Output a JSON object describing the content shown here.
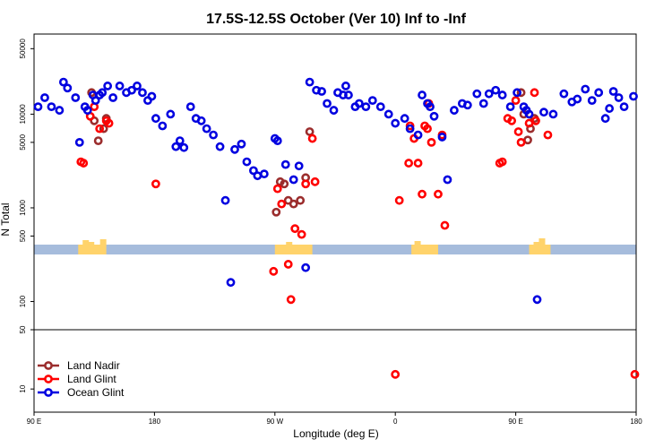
{
  "chart_data": {
    "type": "scatter",
    "title": "17.5S-12.5S October (Ver 10)   Inf to -Inf",
    "xlabel": "Longitude (deg E)",
    "ylabel": "N Total",
    "x_tick_labels": [
      "90 E",
      "180",
      "90 W",
      "0",
      "90 E",
      "180"
    ],
    "x_ticks": [
      90,
      180,
      270,
      360,
      450,
      540
    ],
    "xlim": [
      90,
      540
    ],
    "y_scale": "log",
    "y_tick_labels": [
      "10",
      "50",
      "100",
      "500",
      "1000",
      "5000",
      "10000",
      "50000"
    ],
    "y_ticks": [
      10,
      50,
      100,
      500,
      1000,
      5000,
      10000,
      50000
    ],
    "ylim_upper": [
      50,
      55000
    ],
    "ylim_lower": [
      8,
      50
    ],
    "legend_position": "bottom-left",
    "colors": {
      "land_nadir": "#9b2d2d",
      "land_glint": "#ff0000",
      "ocean_glint": "#0000e0",
      "land_band": "#ffd36b",
      "ocean_band": "#a6bcdc"
    },
    "series": [
      {
        "name": "Land Nadir",
        "x": [
          133,
          135,
          138,
          142,
          144,
          271,
          274,
          277,
          280,
          284,
          289,
          293,
          296,
          454,
          456,
          459,
          461,
          464
        ],
        "y": [
          17000,
          8500,
          5200,
          7000,
          9000,
          900,
          1900,
          1800,
          1200,
          1100,
          1200,
          2100,
          6500,
          17000,
          10000,
          5300,
          7000,
          9000
        ]
      },
      {
        "name": "Land Glint",
        "x": [
          125,
          127,
          132,
          135,
          139,
          144,
          146,
          181,
          269,
          272,
          275,
          280,
          282,
          285,
          290,
          293,
          298,
          300,
          360,
          363,
          370,
          371,
          374,
          377,
          380,
          382,
          384,
          385,
          387,
          392,
          395,
          397,
          438,
          440,
          444,
          447,
          450,
          452,
          454,
          460,
          464,
          465,
          474,
          539
        ],
        "y": [
          3100,
          3000,
          9500,
          12000,
          7000,
          8500,
          8000,
          1800,
          210,
          1600,
          1100,
          250,
          105,
          600,
          520,
          1800,
          5500,
          1900,
          14,
          1200,
          3000,
          7500,
          5500,
          3000,
          1400,
          7500,
          7000,
          13000,
          5000,
          1400,
          6000,
          650,
          3000,
          3100,
          9000,
          8500,
          14000,
          6500,
          5000,
          8000,
          17000,
          8500,
          6000,
          14
        ]
      },
      {
        "name": "Ocean Glint",
        "x": [
          93,
          98,
          103,
          109,
          112,
          115,
          121,
          124,
          128,
          130,
          134,
          136,
          139,
          141,
          145,
          149,
          154,
          159,
          163,
          167,
          171,
          175,
          178,
          181,
          186,
          192,
          196,
          199,
          202,
          207,
          211,
          215,
          219,
          224,
          229,
          233,
          237,
          240,
          245,
          249,
          254,
          257,
          262,
          270,
          272,
          278,
          284,
          288,
          293,
          296,
          301,
          305,
          309,
          314,
          317,
          321,
          323,
          325,
          330,
          333,
          338,
          343,
          349,
          355,
          360,
          367,
          371,
          377,
          380,
          384,
          386,
          389,
          395,
          399,
          404,
          410,
          414,
          421,
          426,
          430,
          435,
          440,
          446,
          451,
          456,
          458,
          460,
          466,
          471,
          478,
          486,
          492,
          496,
          502,
          507,
          512,
          517,
          520,
          523,
          527,
          531,
          538
        ],
        "y": [
          12000,
          15000,
          12000,
          11000,
          22000,
          19000,
          15000,
          5000,
          12000,
          11000,
          16000,
          14000,
          16000,
          17000,
          20000,
          15000,
          20000,
          17000,
          18000,
          20000,
          17000,
          14000,
          15500,
          9000,
          7500,
          10000,
          4500,
          5200,
          4400,
          12000,
          9000,
          8500,
          7000,
          6000,
          4500,
          1200,
          160,
          4200,
          4800,
          3100,
          2500,
          2200,
          2300,
          5500,
          5200,
          2900,
          2000,
          2800,
          230,
          22000,
          18000,
          17500,
          13000,
          11000,
          17000,
          16000,
          20000,
          16000,
          12000,
          13000,
          12000,
          14000,
          12000,
          10000,
          8000,
          9000,
          7000,
          6000,
          16000,
          13000,
          12000,
          9500,
          5700,
          2000,
          11000,
          13000,
          12500,
          16500,
          13000,
          16500,
          18000,
          16000,
          12000,
          17000,
          12000,
          11000,
          10000,
          105,
          10500,
          10000,
          16500,
          13500,
          14500,
          18500,
          14000,
          17000,
          9000,
          11500,
          17500,
          15000,
          12000,
          15500
        ]
      }
    ],
    "legend": [
      "Land Nadir",
      "Land Glint",
      "Ocean Glint"
    ]
  }
}
